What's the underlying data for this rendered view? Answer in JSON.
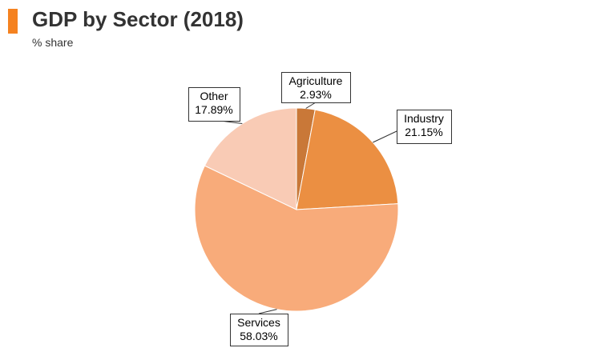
{
  "header": {
    "title": "GDP by Sector (2018)",
    "subtitle": "% share",
    "accent_color": "#f58220"
  },
  "chart_data": {
    "type": "pie",
    "title": "GDP by Sector (2018)",
    "subtitle": "% share",
    "start_angle_deg": 0,
    "direction": "clockwise",
    "slices": [
      {
        "label": "Agriculture",
        "value": 2.93,
        "display": "2.93%",
        "color": "#c97838"
      },
      {
        "label": "Industry",
        "value": 21.15,
        "display": "21.15%",
        "color": "#eb8f42"
      },
      {
        "label": "Services",
        "value": 58.03,
        "display": "58.03%",
        "color": "#f8ab7a"
      },
      {
        "label": "Other",
        "value": 17.89,
        "display": "17.89%",
        "color": "#f9cbb5"
      }
    ],
    "legend": "none (labels with leader lines)"
  }
}
